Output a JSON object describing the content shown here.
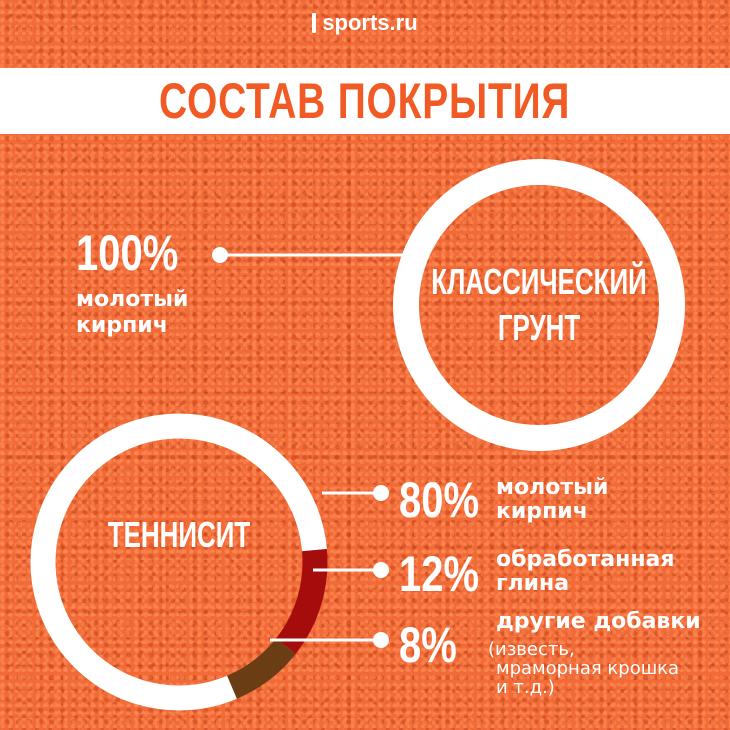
{
  "header": {
    "logo": "sports.ru",
    "title": "СОСТАВ ПОКРЫТИЯ"
  },
  "classic": {
    "name_line1": "КЛАССИЧЕСКИЙ",
    "name_line2": "ГРУНТ",
    "percent": "100%",
    "label_line1": "молотый",
    "label_line2": "кирпич"
  },
  "tennisit": {
    "name": "ТЕННИСИТ",
    "items": [
      {
        "percent": "80%",
        "line1": "молотый",
        "line2": "кирпич"
      },
      {
        "percent": "12%",
        "line1": "обработанная",
        "line2": "глина"
      },
      {
        "percent": "8%",
        "line1": "другие добавки",
        "note1": "(известь,",
        "note2": "мраморная крошка",
        "note3": "и т.д.)"
      }
    ]
  },
  "colors": {
    "background": "#f26a35",
    "ring": "#ffffff",
    "title_text": "#f15a24",
    "clay": "#a50d0d",
    "additives": "#6b3d14"
  },
  "chart_data": [
    {
      "type": "pie",
      "title": "КЛАССИЧЕСКИЙ ГРУНТ",
      "categories": [
        "молотый кирпич"
      ],
      "values": [
        100
      ]
    },
    {
      "type": "pie",
      "title": "ТЕННИСИТ",
      "categories": [
        "молотый кирпич",
        "обработанная глина",
        "другие добавки"
      ],
      "values": [
        80,
        12,
        8
      ]
    }
  ]
}
